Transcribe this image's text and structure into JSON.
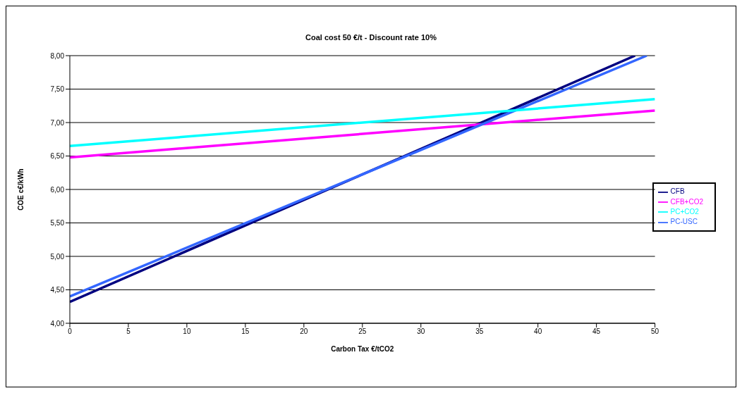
{
  "chart_data": {
    "type": "line",
    "title": "Coal cost 50 €/t - Discount rate 10%",
    "xlabel": "Carbon Tax €/tCO2",
    "ylabel": "COE c€/kWh",
    "series": [
      {
        "name": "CFB",
        "color": "#000080",
        "x": [
          0,
          48.3
        ],
        "values": [
          4.32,
          8.0
        ]
      },
      {
        "name": "CFB+CO2",
        "color": "#ff00ff",
        "x": [
          0,
          50
        ],
        "values": [
          6.48,
          7.18
        ]
      },
      {
        "name": "PC-USC",
        "color": "#3366ff",
        "x": [
          0,
          49.3
        ],
        "values": [
          4.4,
          8.0
        ]
      },
      {
        "name": "PC+CO2",
        "color": "#00ffff",
        "x": [
          0,
          50
        ],
        "values": [
          6.65,
          7.35
        ]
      }
    ],
    "xlim": [
      0,
      50
    ],
    "xticks": [
      0,
      5,
      10,
      15,
      20,
      25,
      30,
      35,
      40,
      45,
      50
    ],
    "ylim": [
      4,
      8
    ],
    "yticks": [
      {
        "value": 4,
        "label": "4,00"
      },
      {
        "value": 4.5,
        "label": "4,50"
      },
      {
        "value": 5,
        "label": "5,00"
      },
      {
        "value": 5.5,
        "label": "5,50"
      },
      {
        "value": 6,
        "label": "6,00"
      },
      {
        "value": 6.5,
        "label": "6,50"
      },
      {
        "value": 7,
        "label": "7,00"
      },
      {
        "value": 7.5,
        "label": "7,50"
      },
      {
        "value": 8,
        "label": "8,00"
      }
    ],
    "grid": "y",
    "legend": "right",
    "marker": "none",
    "line_style": "solid"
  }
}
